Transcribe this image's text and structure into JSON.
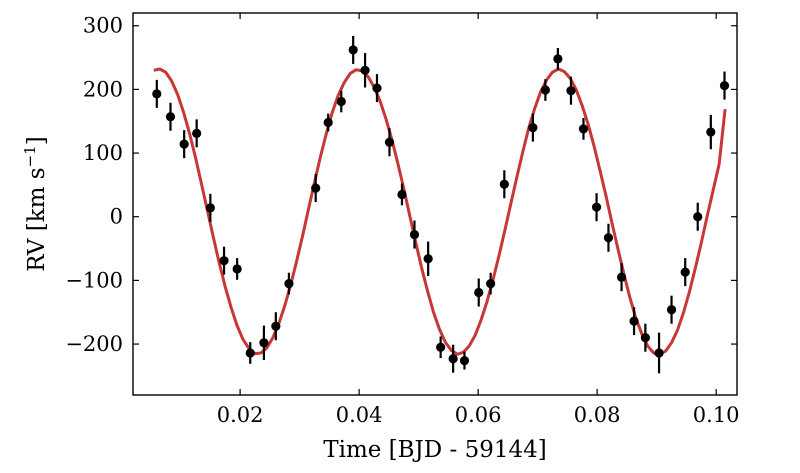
{
  "chart_data": {
    "type": "scatter",
    "xlabel": "Time [BJD - 59144]",
    "ylabel_main": "RV [km s",
    "ylabel_sup": "−1",
    "ylabel_close": "]",
    "xlim": [
      0.002,
      0.1035
    ],
    "ylim": [
      -280,
      320
    ],
    "xticks": [
      0.02,
      0.04,
      0.06,
      0.08,
      0.1
    ],
    "xtick_labels": [
      "0.02",
      "0.04",
      "0.06",
      "0.08",
      "0.10"
    ],
    "yticks": [
      -200,
      -100,
      0,
      100,
      200,
      300
    ],
    "ytick_labels": [
      "−200",
      "−100",
      "0",
      "100",
      "200",
      "300"
    ],
    "grid": false,
    "series": [
      {
        "kind": "errorbar",
        "color": "#000000",
        "points": [
          {
            "x": 0.006,
            "y": 193,
            "err": 22
          },
          {
            "x": 0.0083,
            "y": 157,
            "err": 22
          },
          {
            "x": 0.0106,
            "y": 114,
            "err": 22
          },
          {
            "x": 0.0127,
            "y": 131,
            "err": 22
          },
          {
            "x": 0.015,
            "y": 14,
            "err": 22
          },
          {
            "x": 0.0173,
            "y": -69,
            "err": 22
          },
          {
            "x": 0.0195,
            "y": -82,
            "err": 17
          },
          {
            "x": 0.0217,
            "y": -214,
            "err": 17
          },
          {
            "x": 0.024,
            "y": -198,
            "err": 27
          },
          {
            "x": 0.026,
            "y": -172,
            "err": 22
          },
          {
            "x": 0.0282,
            "y": -105,
            "err": 17
          },
          {
            "x": 0.0327,
            "y": 45,
            "err": 22
          },
          {
            "x": 0.0348,
            "y": 148,
            "err": 14
          },
          {
            "x": 0.037,
            "y": 181,
            "err": 17
          },
          {
            "x": 0.039,
            "y": 262,
            "err": 22
          },
          {
            "x": 0.041,
            "y": 230,
            "err": 27
          },
          {
            "x": 0.043,
            "y": 202,
            "err": 22
          },
          {
            "x": 0.0451,
            "y": 117,
            "err": 22
          },
          {
            "x": 0.0472,
            "y": 35,
            "err": 17
          },
          {
            "x": 0.0493,
            "y": -28,
            "err": 22
          },
          {
            "x": 0.0516,
            "y": -66,
            "err": 27
          },
          {
            "x": 0.0537,
            "y": -205,
            "err": 17
          },
          {
            "x": 0.0558,
            "y": -223,
            "err": 22
          },
          {
            "x": 0.0577,
            "y": -226,
            "err": 14
          },
          {
            "x": 0.0601,
            "y": -119,
            "err": 22
          },
          {
            "x": 0.0621,
            "y": -105,
            "err": 17
          },
          {
            "x": 0.0644,
            "y": 51,
            "err": 22
          },
          {
            "x": 0.0692,
            "y": 140,
            "err": 22
          },
          {
            "x": 0.0713,
            "y": 199,
            "err": 17
          },
          {
            "x": 0.0734,
            "y": 248,
            "err": 17
          },
          {
            "x": 0.0756,
            "y": 198,
            "err": 22
          },
          {
            "x": 0.0777,
            "y": 138,
            "err": 17
          },
          {
            "x": 0.0799,
            "y": 15,
            "err": 22
          },
          {
            "x": 0.0819,
            "y": -33,
            "err": 22
          },
          {
            "x": 0.0841,
            "y": -95,
            "err": 22
          },
          {
            "x": 0.0862,
            "y": -164,
            "err": 22
          },
          {
            "x": 0.0881,
            "y": -190,
            "err": 22
          },
          {
            "x": 0.0904,
            "y": -214,
            "err": 32
          },
          {
            "x": 0.0925,
            "y": -146,
            "err": 22
          },
          {
            "x": 0.0948,
            "y": -87,
            "err": 22
          },
          {
            "x": 0.0969,
            "y": 0,
            "err": 22
          },
          {
            "x": 0.0991,
            "y": 133,
            "err": 27
          },
          {
            "x": 0.1014,
            "y": 206,
            "err": 22
          }
        ]
      },
      {
        "kind": "model-line",
        "color": "#c83737",
        "x": [
          0.0055,
          0.0065,
          0.0075,
          0.0085,
          0.0095,
          0.0105,
          0.0115,
          0.0125,
          0.0135,
          0.0145,
          0.0155,
          0.0165,
          0.0175,
          0.0185,
          0.0195,
          0.0205,
          0.0215,
          0.0225,
          0.0235,
          0.0245,
          0.0255,
          0.0265,
          0.0275,
          0.0285,
          0.0295,
          0.0305,
          0.0315,
          0.0325,
          0.0335,
          0.0345,
          0.0355,
          0.0365,
          0.0375,
          0.0385,
          0.0395,
          0.0405,
          0.0415,
          0.0425,
          0.0435,
          0.0445,
          0.0455,
          0.0465,
          0.0475,
          0.0485,
          0.0495,
          0.0505,
          0.0515,
          0.0525,
          0.0535,
          0.0545,
          0.0555,
          0.0565,
          0.0575,
          0.0585,
          0.0595,
          0.0605,
          0.0615,
          0.0625,
          0.0635,
          0.0645,
          0.0655,
          0.0665,
          0.0675,
          0.0685,
          0.0695,
          0.0705,
          0.0715,
          0.0725,
          0.0735,
          0.0745,
          0.0755,
          0.0765,
          0.0775,
          0.0785,
          0.0795,
          0.0805,
          0.0815,
          0.0825,
          0.0835,
          0.0845,
          0.0855,
          0.0865,
          0.0875,
          0.0885,
          0.0895,
          0.0905,
          0.0915,
          0.0925,
          0.0935,
          0.0945,
          0.0955,
          0.0965,
          0.0975,
          0.0985,
          0.0995,
          0.1005,
          0.1015
        ],
        "y": [
          230,
          232,
          227,
          213,
          192,
          164,
          131,
          93,
          52,
          10,
          -32,
          -73,
          -110,
          -143,
          -171,
          -193,
          -207,
          -215,
          -214,
          -206,
          -190,
          -168,
          -140,
          -107,
          -70,
          -30,
          12,
          54,
          94,
          131,
          164,
          191,
          211,
          225,
          231,
          229,
          220,
          204,
          182,
          154,
          121,
          84,
          44,
          2,
          -40,
          -80,
          -117,
          -150,
          -177,
          -197,
          -210,
          -216,
          -213,
          -203,
          -186,
          -162,
          -133,
          -99,
          -61,
          -21,
          21,
          62,
          102,
          139,
          170,
          196,
          215,
          227,
          232,
          228,
          217,
          199,
          174,
          145,
          110,
          72,
          32,
          -10,
          -51,
          -90,
          -127,
          -159,
          -184,
          -203,
          -214,
          -216,
          -211,
          -198,
          -178,
          -151,
          -118,
          -81,
          -41,
          1,
          42,
          82,
          169
        ]
      }
    ]
  }
}
